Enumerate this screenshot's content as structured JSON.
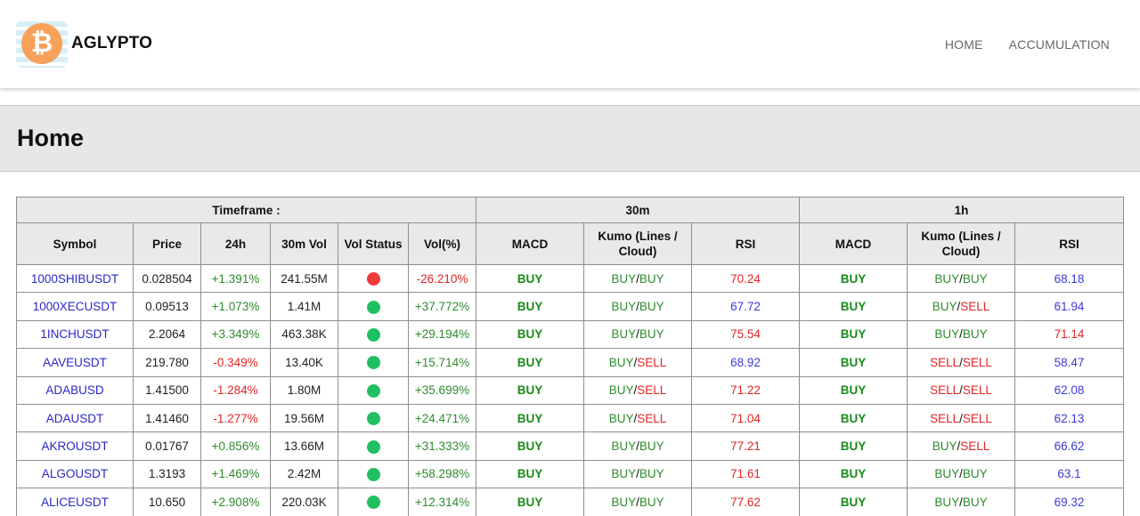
{
  "brand": {
    "name": "AGLYPTO",
    "logo_icon": "bitcoin-icon",
    "logo_glyph": "₿"
  },
  "nav": {
    "home": "HOME",
    "accumulation": "ACCUMULATION"
  },
  "page_title": "Home",
  "colors": {
    "buy": "#2e8b2e",
    "sell": "#e02525",
    "link": "#2828c8",
    "rsi_neutral": "#3a3ad8",
    "dot_green": "#20c060",
    "dot_red": "#f03a3a",
    "header_bg": "#e9e9e9"
  },
  "table": {
    "group_headers": {
      "timeframe": "Timeframe :",
      "tf1": "30m",
      "tf2": "1h"
    },
    "columns": {
      "symbol": "Symbol",
      "price": "Price",
      "change": "24h",
      "vol30": "30m Vol",
      "vol_status": "Vol Status",
      "vol_pct": "Vol(%)",
      "macd": "MACD",
      "kumo": "Kumo (Lines / Cloud)",
      "rsi": "RSI"
    },
    "rows": [
      {
        "symbol": "1000SHIBUSDT",
        "price": "0.028504",
        "change": "+1.391%",
        "vol": "241.55M",
        "status": "red",
        "volpct": "-26.210%",
        "m30": {
          "macd": "BUY",
          "kumo_lines": "BUY",
          "kumo_cloud": "BUY",
          "rsi": "70.24"
        },
        "h1": {
          "macd": "BUY",
          "kumo_lines": "BUY",
          "kumo_cloud": "BUY",
          "rsi": "68.18"
        }
      },
      {
        "symbol": "1000XECUSDT",
        "price": "0.09513",
        "change": "+1.073%",
        "vol": "1.41M",
        "status": "green",
        "volpct": "+37.772%",
        "m30": {
          "macd": "BUY",
          "kumo_lines": "BUY",
          "kumo_cloud": "BUY",
          "rsi": "67.72"
        },
        "h1": {
          "macd": "BUY",
          "kumo_lines": "BUY",
          "kumo_cloud": "SELL",
          "rsi": "61.94"
        }
      },
      {
        "symbol": "1INCHUSDT",
        "price": "2.2064",
        "change": "+3.349%",
        "vol": "463.38K",
        "status": "green",
        "volpct": "+29.194%",
        "m30": {
          "macd": "BUY",
          "kumo_lines": "BUY",
          "kumo_cloud": "BUY",
          "rsi": "75.54"
        },
        "h1": {
          "macd": "BUY",
          "kumo_lines": "BUY",
          "kumo_cloud": "BUY",
          "rsi": "71.14"
        }
      },
      {
        "symbol": "AAVEUSDT",
        "price": "219.780",
        "change": "-0.349%",
        "vol": "13.40K",
        "status": "green",
        "volpct": "+15.714%",
        "m30": {
          "macd": "BUY",
          "kumo_lines": "BUY",
          "kumo_cloud": "SELL",
          "rsi": "68.92"
        },
        "h1": {
          "macd": "BUY",
          "kumo_lines": "SELL",
          "kumo_cloud": "SELL",
          "rsi": "58.47"
        }
      },
      {
        "symbol": "ADABUSD",
        "price": "1.41500",
        "change": "-1.284%",
        "vol": "1.80M",
        "status": "green",
        "volpct": "+35.699%",
        "m30": {
          "macd": "BUY",
          "kumo_lines": "BUY",
          "kumo_cloud": "SELL",
          "rsi": "71.22"
        },
        "h1": {
          "macd": "BUY",
          "kumo_lines": "SELL",
          "kumo_cloud": "SELL",
          "rsi": "62.08"
        }
      },
      {
        "symbol": "ADAUSDT",
        "price": "1.41460",
        "change": "-1.277%",
        "vol": "19.56M",
        "status": "green",
        "volpct": "+24.471%",
        "m30": {
          "macd": "BUY",
          "kumo_lines": "BUY",
          "kumo_cloud": "SELL",
          "rsi": "71.04"
        },
        "h1": {
          "macd": "BUY",
          "kumo_lines": "SELL",
          "kumo_cloud": "SELL",
          "rsi": "62.13"
        }
      },
      {
        "symbol": "AKROUSDT",
        "price": "0.01767",
        "change": "+0.856%",
        "vol": "13.66M",
        "status": "green",
        "volpct": "+31.333%",
        "m30": {
          "macd": "BUY",
          "kumo_lines": "BUY",
          "kumo_cloud": "BUY",
          "rsi": "77.21"
        },
        "h1": {
          "macd": "BUY",
          "kumo_lines": "BUY",
          "kumo_cloud": "SELL",
          "rsi": "66.62"
        }
      },
      {
        "symbol": "ALGOUSDT",
        "price": "1.3193",
        "change": "+1.469%",
        "vol": "2.42M",
        "status": "green",
        "volpct": "+58.298%",
        "m30": {
          "macd": "BUY",
          "kumo_lines": "BUY",
          "kumo_cloud": "BUY",
          "rsi": "71.61"
        },
        "h1": {
          "macd": "BUY",
          "kumo_lines": "BUY",
          "kumo_cloud": "BUY",
          "rsi": "63.1"
        }
      },
      {
        "symbol": "ALICEUSDT",
        "price": "10.650",
        "change": "+2.908%",
        "vol": "220.03K",
        "status": "green",
        "volpct": "+12.314%",
        "m30": {
          "macd": "BUY",
          "kumo_lines": "BUY",
          "kumo_cloud": "BUY",
          "rsi": "77.62"
        },
        "h1": {
          "macd": "BUY",
          "kumo_lines": "BUY",
          "kumo_cloud": "BUY",
          "rsi": "69.32"
        }
      }
    ]
  }
}
